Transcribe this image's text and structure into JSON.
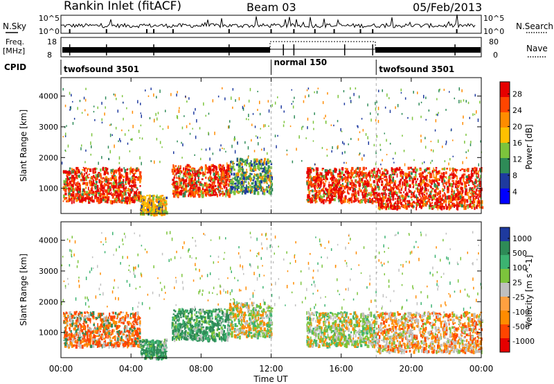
{
  "header": {
    "station": "Rankin Inlet (fitACF)",
    "beam": "Beam 03",
    "date": "05/Feb/2013"
  },
  "params": {
    "nsky_label": "N.Sky",
    "nsearch_label": "N.Search",
    "freq_label": "Freq.",
    "freq_unit": "[MHz]",
    "nave_label": "Nave",
    "cpid_label": "CPID",
    "nsky_ticks": [
      "10^5",
      "10^0"
    ],
    "nsearch_ticks": [
      "10^5",
      "10^0"
    ],
    "freq_ticks": [
      "18",
      "8"
    ],
    "nave_ticks": [
      "80",
      "0"
    ],
    "cpid_segments": [
      {
        "name": "twofsound 3501",
        "start": 0,
        "end": 12
      },
      {
        "name": "normal 150",
        "start": 12,
        "end": 18
      },
      {
        "name": "twofsound 3501",
        "start": 18,
        "end": 24
      }
    ]
  },
  "chart_data": [
    {
      "type": "heatmap",
      "title": "",
      "xlabel": "Time UT",
      "ylabel": "Slant Range [km]",
      "xlim": [
        0,
        24
      ],
      "ylim": [
        180,
        4600
      ],
      "x_ticks": [
        "00:00",
        "04:00",
        "08:00",
        "12:00",
        "16:00",
        "20:00",
        "00:00"
      ],
      "y_ticks": [
        1000,
        2000,
        3000,
        4000
      ],
      "colorbar": {
        "label": "Power [dB]",
        "ticks": [
          "28",
          "24",
          "20",
          "16",
          "12",
          "8",
          "4"
        ],
        "colors": [
          "#e60000",
          "#ff4500",
          "#ff8c00",
          "#ffc000",
          "#7cc43c",
          "#2e8b57",
          "#1e3a9f",
          "#0000ff"
        ]
      },
      "scatter_bands": [
        {
          "x_start": 0.1,
          "x_end": 4.5,
          "range_low": 600,
          "range_high": 1700,
          "level": "high"
        },
        {
          "x_start": 4.5,
          "x_end": 6.0,
          "range_low": 200,
          "range_high": 800,
          "level": "medium"
        },
        {
          "x_start": 6.3,
          "x_end": 9.6,
          "range_low": 800,
          "range_high": 1800,
          "level": "high"
        },
        {
          "x_start": 9.6,
          "x_end": 12.0,
          "range_low": 900,
          "range_high": 2000,
          "level": "low"
        },
        {
          "x_start": 14.0,
          "x_end": 18.0,
          "range_low": 600,
          "range_high": 1700,
          "level": "high"
        },
        {
          "x_start": 18.0,
          "x_end": 24.0,
          "range_low": 400,
          "range_high": 1700,
          "level": "high"
        }
      ]
    },
    {
      "type": "heatmap",
      "title": "",
      "xlabel": "Time UT",
      "ylabel": "Slant Range [km]",
      "xlim": [
        0,
        24
      ],
      "ylim": [
        180,
        4600
      ],
      "x_ticks": [
        "00:00",
        "04:00",
        "08:00",
        "12:00",
        "16:00",
        "20:00",
        "00:00"
      ],
      "y_ticks": [
        1000,
        2000,
        3000,
        4000
      ],
      "colorbar": {
        "label": "Velocity [m s^-1]",
        "ticks": [
          "1000",
          "500",
          "100",
          "25",
          "-25",
          "-100",
          "-500",
          "-1000"
        ],
        "colors": [
          "#1e3a9f",
          "#2e8b57",
          "#3cb371",
          "#7cc43c",
          "#c0c0c0",
          "#ffa040",
          "#ff8c00",
          "#ff4500",
          "#e60000"
        ]
      },
      "scatter_bands": [
        {
          "x_start": 0.1,
          "x_end": 4.5,
          "range_low": 600,
          "range_high": 1700,
          "level": "negative"
        },
        {
          "x_start": 4.5,
          "x_end": 6.0,
          "range_low": 200,
          "range_high": 800,
          "level": "positive"
        },
        {
          "x_start": 6.3,
          "x_end": 9.6,
          "range_low": 800,
          "range_high": 1800,
          "level": "positive"
        },
        {
          "x_start": 9.6,
          "x_end": 12.0,
          "range_low": 900,
          "range_high": 2000,
          "level": "mixed"
        },
        {
          "x_start": 14.0,
          "x_end": 18.0,
          "range_low": 600,
          "range_high": 1700,
          "level": "mixed"
        },
        {
          "x_start": 18.0,
          "x_end": 24.0,
          "range_low": 400,
          "range_high": 1700,
          "level": "gray-negative"
        }
      ]
    }
  ]
}
